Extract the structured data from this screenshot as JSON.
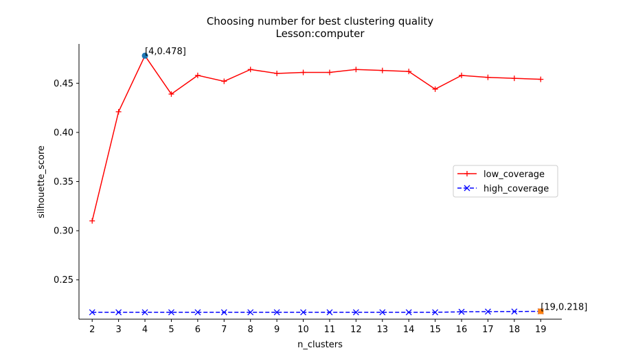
{
  "chart_data": {
    "type": "line",
    "title": "Choosing number for best clustering quality",
    "subtitle": "Lesson:computer",
    "xlabel": "n_clusters",
    "ylabel": "silhouette_score",
    "x": [
      2,
      3,
      4,
      5,
      6,
      7,
      8,
      9,
      10,
      11,
      12,
      13,
      14,
      15,
      16,
      17,
      18,
      19
    ],
    "xlim": [
      1.5,
      19.8
    ],
    "ylim": [
      0.21,
      0.49
    ],
    "yticks": [
      0.25,
      0.3,
      0.35,
      0.4,
      0.45
    ],
    "ytick_labels": [
      "0.25",
      "0.30",
      "0.35",
      "0.40",
      "0.45"
    ],
    "grid": false,
    "legend_position": "center-right",
    "series": [
      {
        "name": "low_coverage",
        "color": "#ff0000",
        "linestyle": "solid",
        "marker": "plus",
        "values": [
          0.31,
          0.421,
          0.478,
          0.439,
          0.458,
          0.452,
          0.464,
          0.46,
          0.461,
          0.461,
          0.464,
          0.463,
          0.462,
          0.444,
          0.458,
          0.456,
          0.455,
          0.454
        ]
      },
      {
        "name": "high_coverage",
        "color": "#0000ff",
        "linestyle": "dashed",
        "marker": "x",
        "values": [
          0.217,
          0.217,
          0.217,
          0.217,
          0.217,
          0.217,
          0.217,
          0.217,
          0.217,
          0.217,
          0.217,
          0.217,
          0.217,
          0.217,
          0.2175,
          0.2177,
          0.2178,
          0.218
        ]
      }
    ],
    "annotations": [
      {
        "x": 4,
        "y": 0.478,
        "text": "[4,0.478]",
        "marker_color": "#1f77b4"
      },
      {
        "x": 19,
        "y": 0.218,
        "text": "[19,0.218]",
        "marker_color": "#ff7f0e"
      }
    ]
  }
}
